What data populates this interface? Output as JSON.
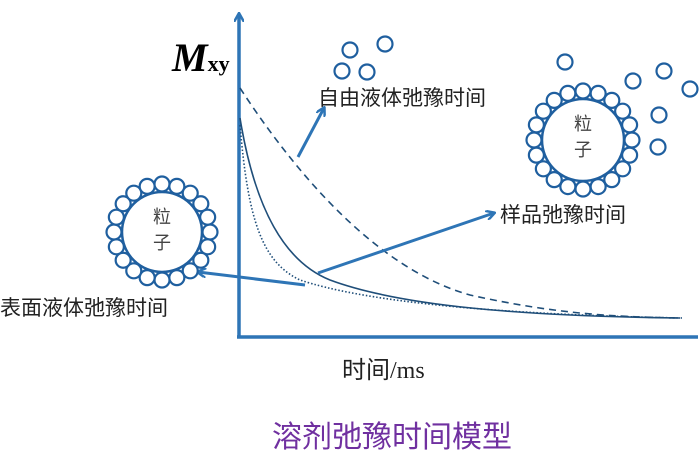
{
  "y_axis_label": {
    "main": "M",
    "sub": "xy"
  },
  "x_axis_label": "时间/ms",
  "title": "溶剂弛豫时间模型",
  "annotations": {
    "free_liquid": "自由液体弛豫时间",
    "sample": "样品弛豫时间",
    "surface_liquid": "表面液体弛豫时间"
  },
  "particle_label": [
    "粒",
    "子"
  ],
  "colors": {
    "line": "#1f5f9f",
    "axis": "#2e75b6",
    "title": "#7030a0"
  }
}
